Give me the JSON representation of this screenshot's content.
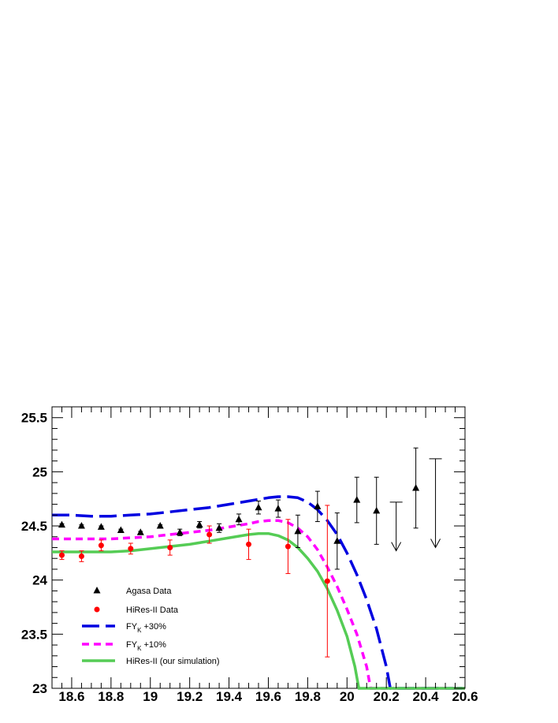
{
  "chart_data": {
    "type": "scatter",
    "xlim": [
      18.5,
      20.6
    ],
    "ylim": [
      23,
      25.6
    ],
    "x_ticks": [
      "18.6",
      "18.8",
      "19",
      "19.2",
      "19.4",
      "19.6",
      "19.8",
      "20",
      "20.2",
      "20.4",
      "20.6"
    ],
    "x_tick_values": [
      18.6,
      18.8,
      19.0,
      19.2,
      19.4,
      19.6,
      19.8,
      20.0,
      20.2,
      20.4,
      20.6
    ],
    "y_ticks": [
      "23",
      "23.5",
      "24",
      "24.5",
      "25",
      "25.5"
    ],
    "y_tick_values": [
      23,
      23.5,
      24,
      24.5,
      25,
      25.5
    ],
    "grid": false,
    "legend_position": "bottom-left",
    "series": [
      {
        "name": "Agasa Data",
        "kind": "points",
        "marker": "triangle",
        "color": "#000000",
        "points": [
          {
            "x": 18.55,
            "y": 24.51,
            "err": 0.01
          },
          {
            "x": 18.65,
            "y": 24.5,
            "err": 0.01
          },
          {
            "x": 18.75,
            "y": 24.49,
            "err": 0.01
          },
          {
            "x": 18.85,
            "y": 24.46,
            "err": 0.01
          },
          {
            "x": 18.95,
            "y": 24.44,
            "err": 0.01
          },
          {
            "x": 19.05,
            "y": 24.5,
            "err": 0.01
          },
          {
            "x": 19.15,
            "y": 24.44,
            "err": 0.03
          },
          {
            "x": 19.25,
            "y": 24.51,
            "err": 0.03
          },
          {
            "x": 19.35,
            "y": 24.48,
            "err": 0.04
          },
          {
            "x": 19.45,
            "y": 24.56,
            "err": 0.05
          },
          {
            "x": 19.55,
            "y": 24.67,
            "err": 0.06
          },
          {
            "x": 19.65,
            "y": 24.66,
            "err": 0.08
          },
          {
            "x": 19.75,
            "y": 24.45,
            "err": 0.15
          },
          {
            "x": 19.85,
            "y": 24.68,
            "err": 0.14
          },
          {
            "x": 19.95,
            "y": 24.36,
            "err": 0.26
          },
          {
            "x": 20.05,
            "y": 24.74,
            "err": 0.21
          },
          {
            "x": 20.15,
            "y": 24.64,
            "err": 0.31
          },
          {
            "x": 20.35,
            "y": 24.85,
            "err": 0.37
          }
        ]
      },
      {
        "name": "HiRes-II Data",
        "kind": "points",
        "marker": "circle",
        "color": "#ff0000",
        "points": [
          {
            "x": 18.55,
            "y": 24.23,
            "err": 0.04
          },
          {
            "x": 18.65,
            "y": 24.22,
            "err": 0.05
          },
          {
            "x": 18.75,
            "y": 24.32,
            "err": 0.05
          },
          {
            "x": 18.9,
            "y": 24.29,
            "err": 0.05
          },
          {
            "x": 19.1,
            "y": 24.3,
            "err": 0.07
          },
          {
            "x": 19.3,
            "y": 24.42,
            "err": 0.08
          },
          {
            "x": 19.5,
            "y": 24.33,
            "err": 0.14
          },
          {
            "x": 19.7,
            "y": 24.31,
            "err": 0.25
          },
          {
            "x": 19.9,
            "y": 23.99,
            "err": 0.7
          }
        ]
      },
      {
        "name": "FYK +30%",
        "name_main": "FY",
        "name_sub": "K",
        "name_rest": " +30%",
        "kind": "line",
        "dash": "long",
        "color": "#0000e0",
        "x": [
          18.5,
          18.6,
          18.7,
          18.8,
          18.9,
          19.0,
          19.1,
          19.2,
          19.3,
          19.4,
          19.5,
          19.6,
          19.65,
          19.7,
          19.75,
          19.8,
          19.85,
          19.9,
          19.95,
          20.0,
          20.05,
          20.1,
          20.15,
          20.2,
          20.22,
          20.6
        ],
        "y": [
          24.6,
          24.6,
          24.59,
          24.59,
          24.6,
          24.61,
          24.63,
          24.65,
          24.67,
          24.7,
          24.73,
          24.76,
          24.77,
          24.77,
          24.76,
          24.72,
          24.65,
          24.55,
          24.42,
          24.25,
          24.05,
          23.82,
          23.55,
          23.2,
          23.0,
          23.0
        ]
      },
      {
        "name": "FYK +10%",
        "name_main": "FY",
        "name_sub": "K",
        "name_rest": " +10%",
        "kind": "line",
        "dash": "short",
        "color": "#ff00ff",
        "x": [
          18.5,
          18.6,
          18.7,
          18.8,
          18.9,
          19.0,
          19.1,
          19.2,
          19.3,
          19.4,
          19.5,
          19.55,
          19.6,
          19.65,
          19.7,
          19.75,
          19.8,
          19.85,
          19.9,
          19.95,
          20.0,
          20.05,
          20.1,
          20.12,
          20.6
        ],
        "y": [
          24.38,
          24.38,
          24.38,
          24.38,
          24.39,
          24.4,
          24.42,
          24.44,
          24.46,
          24.49,
          24.52,
          24.54,
          24.55,
          24.55,
          24.53,
          24.48,
          24.4,
          24.28,
          24.12,
          23.94,
          23.73,
          23.5,
          23.2,
          23.0,
          23.0
        ]
      },
      {
        "name": "HiRes-II (our simulation)",
        "kind": "line",
        "dash": "solid",
        "color": "#55cc55",
        "x": [
          18.5,
          18.6,
          18.7,
          18.8,
          18.9,
          19.0,
          19.1,
          19.2,
          19.3,
          19.4,
          19.5,
          19.55,
          19.6,
          19.65,
          19.7,
          19.75,
          19.8,
          19.85,
          19.9,
          19.95,
          20.0,
          20.04,
          20.06,
          20.6
        ],
        "y": [
          24.26,
          24.26,
          24.26,
          24.26,
          24.27,
          24.29,
          24.31,
          24.33,
          24.36,
          24.39,
          24.42,
          24.43,
          24.43,
          24.41,
          24.37,
          24.3,
          24.2,
          24.08,
          23.92,
          23.72,
          23.48,
          23.2,
          23.0,
          23.0
        ]
      },
      {
        "name": "upper limits",
        "kind": "limits",
        "color": "#000000",
        "points": [
          {
            "x": 20.25,
            "y_top": 24.72,
            "y_arrow": 24.27
          },
          {
            "x": 20.45,
            "y_top": 25.12,
            "y_arrow": 24.3
          }
        ]
      }
    ]
  }
}
